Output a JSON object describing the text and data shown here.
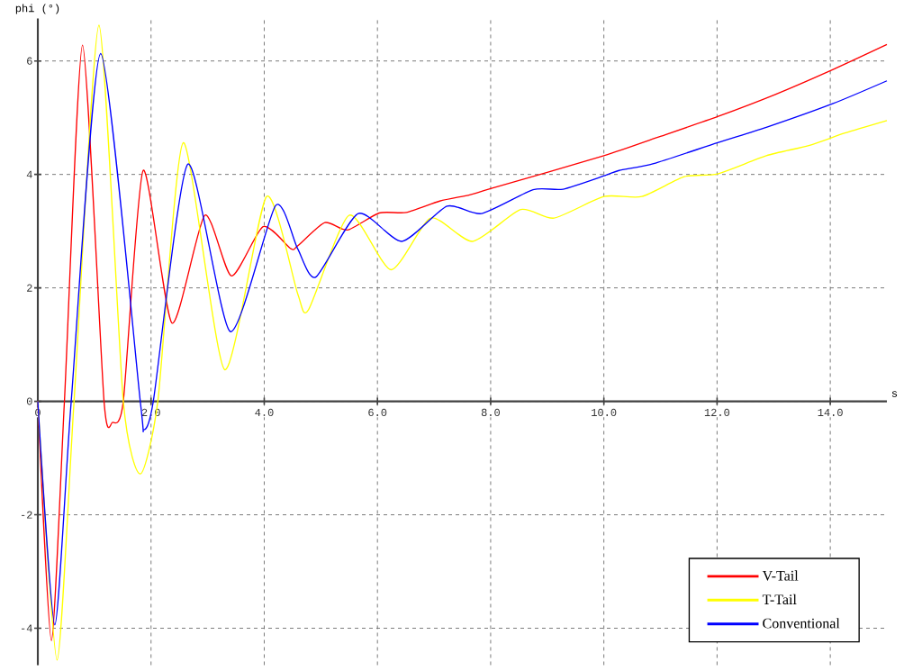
{
  "chart_data": {
    "type": "line",
    "xlabel": "s",
    "ylabel": "phi (°)",
    "xlim": [
      0,
      15
    ],
    "ylim": [
      -4.65,
      6.75
    ],
    "xticks": [
      {
        "value": 0,
        "label": "0"
      },
      {
        "value": 2,
        "label": "2.0"
      },
      {
        "value": 4,
        "label": "4.0"
      },
      {
        "value": 6,
        "label": "6.0"
      },
      {
        "value": 8,
        "label": "8.0"
      },
      {
        "value": 10,
        "label": "10.0"
      },
      {
        "value": 12,
        "label": "12.0"
      },
      {
        "value": 14,
        "label": "14.0"
      }
    ],
    "yticks": [
      -4,
      -2,
      0,
      2,
      4,
      6
    ],
    "grid": true,
    "legend": "bottom right",
    "marker": "none",
    "line_style": "solid",
    "series": [
      {
        "name": "V-Tail",
        "color": "#ff0000",
        "x": [
          0,
          0.24,
          0.47,
          0.79,
          1.17,
          1.32,
          1.51,
          1.86,
          2.37,
          2.95,
          3.42,
          3.98,
          4.47,
          4.59,
          5.07,
          5.47,
          6.03,
          6.51,
          7.1,
          7.63,
          8.0,
          10.0,
          10.94,
          12.01,
          13.03,
          14.05,
          15
        ],
        "values": [
          0,
          -4.22,
          0,
          6.28,
          0,
          -0.37,
          0,
          4.07,
          1.38,
          3.28,
          2.21,
          3.08,
          2.69,
          2.74,
          3.15,
          3.02,
          3.32,
          3.33,
          3.53,
          3.64,
          3.75,
          4.33,
          4.65,
          5.02,
          5.41,
          5.85,
          6.29
        ]
      },
      {
        "name": "T-Tail",
        "color": "#ffff00",
        "x": [
          0,
          0.34,
          0.64,
          1.08,
          1.51,
          1.81,
          2.12,
          2.57,
          3.3,
          4.04,
          4.59,
          4.78,
          5.5,
          6.24,
          6.94,
          7.68,
          8.53,
          9.12,
          10.0,
          10.67,
          11.42,
          12.01,
          12.87,
          13.62,
          14.26,
          15
        ],
        "values": [
          0,
          -4.56,
          0,
          6.63,
          0,
          -1.28,
          0,
          4.56,
          0.56,
          3.61,
          1.9,
          1.61,
          3.28,
          2.32,
          3.23,
          2.82,
          3.38,
          3.23,
          3.61,
          3.61,
          3.96,
          4.01,
          4.33,
          4.51,
          4.73,
          4.95
        ]
      },
      {
        "name": "Conventional",
        "color": "#0000ff",
        "x": [
          0,
          0.3,
          0.59,
          1.11,
          1.81,
          1.87,
          2.04,
          2.65,
          3.4,
          4.2,
          4.59,
          4.91,
          5.66,
          6.43,
          7.23,
          7.84,
          8.75,
          9.28,
          10.02,
          10.27,
          10.88,
          12.01,
          12.87,
          14.05,
          15
        ],
        "values": [
          0,
          -3.94,
          0,
          6.13,
          0,
          -0.5,
          0,
          4.18,
          1.23,
          3.45,
          2.69,
          2.19,
          3.31,
          2.82,
          3.44,
          3.31,
          3.73,
          3.74,
          3.98,
          4.07,
          4.19,
          4.56,
          4.83,
          5.25,
          5.65
        ]
      }
    ]
  }
}
